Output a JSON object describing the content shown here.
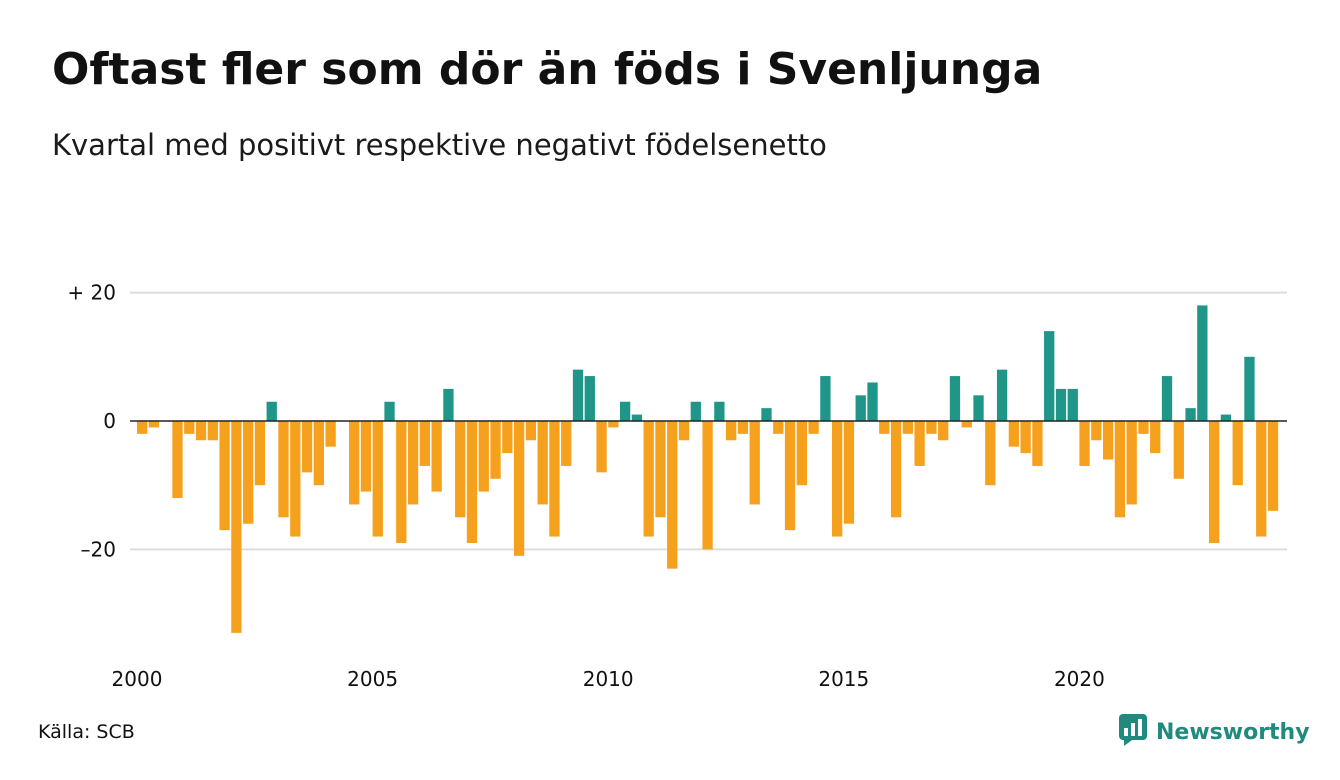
{
  "title": "Oftast fler som dör än föds i Svenljunga",
  "subtitle": "Kvartal med positivt respektive negativt födelsenetto",
  "source": "Källa: SCB",
  "brand": {
    "name": "Newsworthy",
    "icon": "newsworthy-logo-icon",
    "color": "#1f8a7d"
  },
  "colors": {
    "positive": "#1f9688",
    "negative": "#f5a11d",
    "grid": "#dddddd",
    "zero_line": "#222222"
  },
  "chart_data": {
    "type": "bar",
    "title": "Oftast fler som dör än föds i Svenljunga",
    "subtitle": "Kvartal med positivt respektive negativt födelsenetto",
    "xlabel": "",
    "ylabel": "",
    "ylim": [
      -35,
      22
    ],
    "y_ticks": [
      {
        "value": 20,
        "label": "+ 20"
      },
      {
        "value": 0,
        "label": "0"
      },
      {
        "value": -20,
        "label": "–20"
      }
    ],
    "x_ticks": [
      {
        "value": 2000,
        "label": "2000"
      },
      {
        "value": 2005,
        "label": "2005"
      },
      {
        "value": 2010,
        "label": "2010"
      },
      {
        "value": 2015,
        "label": "2015"
      },
      {
        "value": 2020,
        "label": "2020"
      }
    ],
    "grid": true,
    "legend": "none",
    "start_year": 2000,
    "periods_per_year": 4,
    "values": [
      -2,
      -1,
      0,
      -12,
      -2,
      -3,
      -3,
      -17,
      -33,
      -16,
      -10,
      3,
      -15,
      -18,
      -8,
      -10,
      -4,
      0,
      -13,
      -11,
      -18,
      3,
      -19,
      -13,
      -7,
      -11,
      5,
      -15,
      -19,
      -11,
      -9,
      -5,
      -21,
      -3,
      -13,
      -18,
      -7,
      8,
      7,
      -8,
      -1,
      3,
      1,
      -18,
      -15,
      -23,
      -3,
      3,
      -20,
      3,
      -3,
      -2,
      -13,
      2,
      -2,
      -17,
      -10,
      -2,
      7,
      -18,
      -16,
      4,
      6,
      -2,
      -15,
      -2,
      -7,
      -2,
      -3,
      7,
      -1,
      4,
      -10,
      8,
      -4,
      -5,
      -7,
      14,
      5,
      5,
      -7,
      -3,
      -6,
      -15,
      -13,
      -2,
      -5,
      7,
      -9,
      2,
      18,
      -19,
      1,
      -10,
      10,
      -18,
      -14
    ]
  }
}
